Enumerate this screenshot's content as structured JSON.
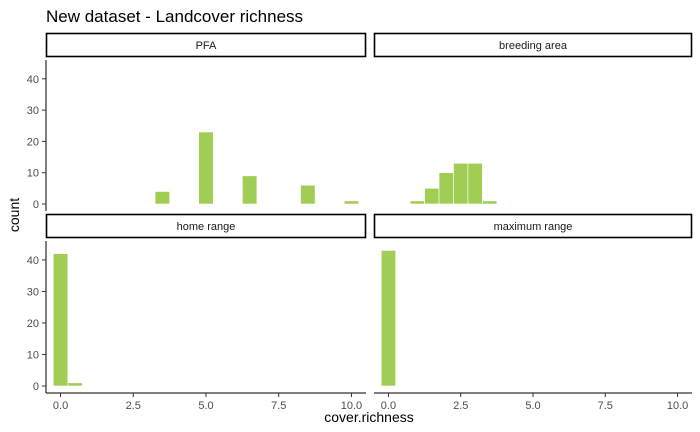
{
  "chart_data": {
    "type": "bar",
    "title": "New dataset - Landcover richness",
    "xlabel": "cover.richness",
    "ylabel": "count",
    "xlim": [
      -0.5,
      10.5
    ],
    "ylim": [
      0,
      46
    ],
    "x_ticks": [
      0,
      2.5,
      5,
      7.5,
      10
    ],
    "x_tick_labels": [
      "0.0",
      "2.5",
      "5.0",
      "7.5",
      "10.0"
    ],
    "y_ticks": [
      0,
      10,
      20,
      30,
      40
    ],
    "y_tick_labels": [
      "0",
      "10",
      "20",
      "30",
      "40"
    ],
    "bin_width": 0.5,
    "bar_color": "#a1cd55",
    "grid": false,
    "facets": [
      {
        "label": "PFA",
        "bins": [
          {
            "x": 3.5,
            "count": 4
          },
          {
            "x": 5.0,
            "count": 23
          },
          {
            "x": 6.5,
            "count": 9
          },
          {
            "x": 8.5,
            "count": 6
          },
          {
            "x": 10.0,
            "count": 1
          }
        ]
      },
      {
        "label": "breeding area",
        "bins": [
          {
            "x": 1.0,
            "count": 1
          },
          {
            "x": 1.5,
            "count": 5
          },
          {
            "x": 2.0,
            "count": 10
          },
          {
            "x": 2.5,
            "count": 13
          },
          {
            "x": 3.0,
            "count": 13
          },
          {
            "x": 3.5,
            "count": 1
          }
        ]
      },
      {
        "label": "home range",
        "bins": [
          {
            "x": 0.0,
            "count": 42
          },
          {
            "x": 0.5,
            "count": 1
          }
        ]
      },
      {
        "label": "maximum range",
        "bins": [
          {
            "x": 0.0,
            "count": 43
          }
        ]
      }
    ]
  }
}
